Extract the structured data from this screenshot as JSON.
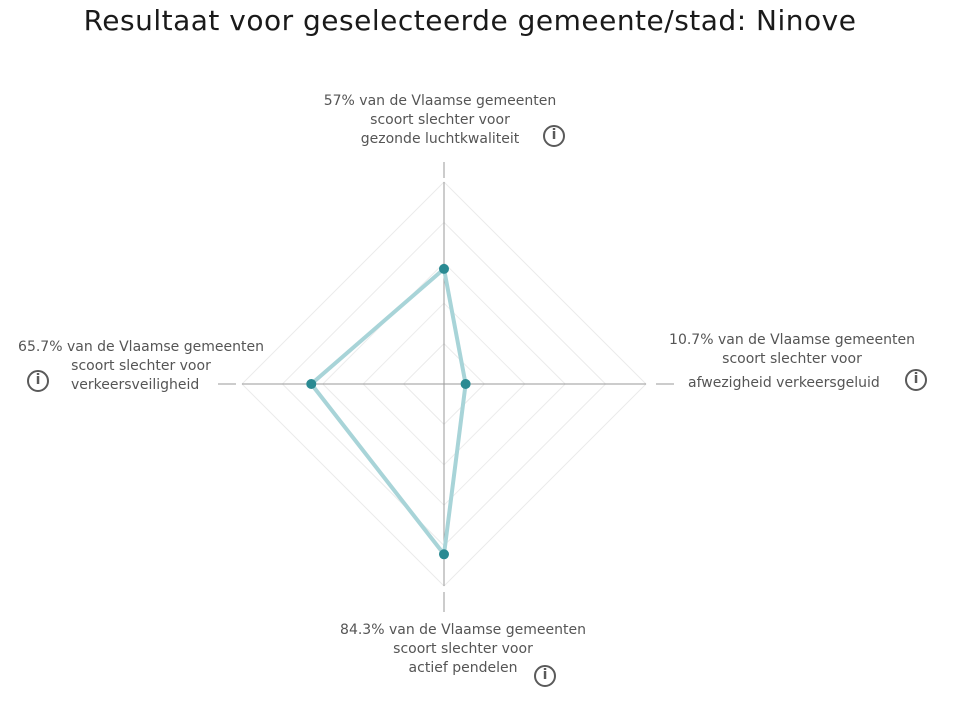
{
  "title": "Resultaat voor geselecteerde gemeente/stad: Ninove",
  "info_glyph": "i",
  "chart_data": {
    "type": "radar",
    "title": "Resultaat voor geselecteerde gemeente/stad: Ninove",
    "rmax": 100,
    "grid": true,
    "color_line": "#a8d4d8",
    "color_point": "#2a8a92",
    "axes": [
      {
        "key": "luchtkwaliteit",
        "value": 57,
        "label_lines": [
          "57% van de Vlaamse gemeenten",
          "scoort slechter voor",
          "gezonde luchtkwaliteit"
        ],
        "icon": "info-icon"
      },
      {
        "key": "verkeersgeluid",
        "value": 10.7,
        "label_lines": [
          "10.7% van de Vlaamse gemeenten",
          "scoort slechter voor",
          "afwezigheid verkeersgeluid"
        ],
        "icon": "info-icon"
      },
      {
        "key": "pendelen",
        "value": 84.3,
        "label_lines": [
          "84.3% van de Vlaamse gemeenten",
          "scoort slechter voor",
          "actief pendelen"
        ],
        "icon": "info-icon"
      },
      {
        "key": "verkeersveiligheid",
        "value": 65.7,
        "label_lines": [
          "65.7% van de Vlaamse gemeenten",
          "scoort slechter voor",
          "verkeersveiligheid"
        ],
        "icon": "info-icon"
      }
    ]
  }
}
